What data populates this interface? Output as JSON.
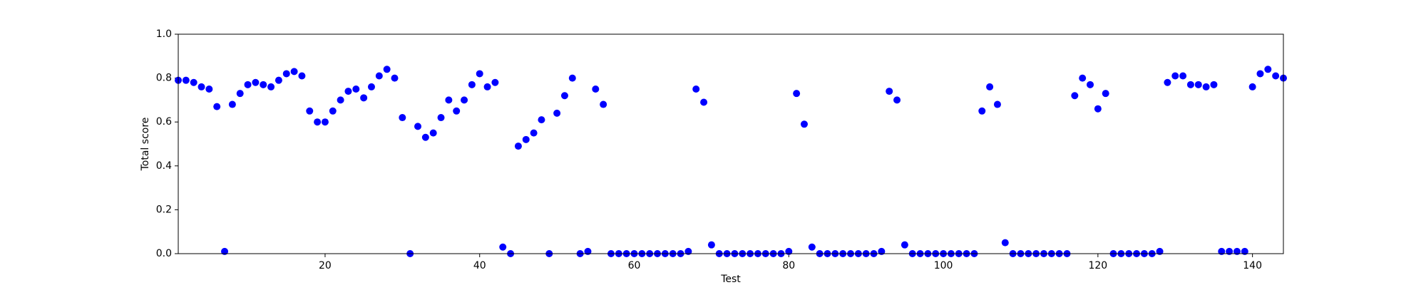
{
  "chart_data": {
    "type": "scatter",
    "xlabel": "Test",
    "ylabel": "Total score",
    "color": "#0000ff",
    "x": [
      1,
      2,
      3,
      4,
      5,
      6,
      7,
      8,
      9,
      10,
      11,
      12,
      13,
      14,
      15,
      16,
      17,
      18,
      19,
      20,
      21,
      22,
      23,
      24,
      25,
      26,
      27,
      28,
      29,
      30,
      31,
      32,
      33,
      34,
      35,
      36,
      37,
      38,
      39,
      40,
      41,
      42,
      43,
      44,
      45,
      46,
      47,
      48,
      49,
      50,
      51,
      52,
      53,
      54,
      55,
      56,
      57,
      58,
      59,
      60,
      61,
      62,
      63,
      64,
      65,
      66,
      67,
      68,
      69,
      70,
      71,
      72,
      73,
      74,
      75,
      76,
      77,
      78,
      79,
      80,
      81,
      82,
      83,
      84,
      85,
      86,
      87,
      88,
      89,
      90,
      91,
      92,
      93,
      94,
      95,
      96,
      97,
      98,
      99,
      100,
      101,
      102,
      103,
      104,
      105,
      106,
      107,
      108,
      109,
      110,
      111,
      112,
      113,
      114,
      115,
      116,
      117,
      118,
      119,
      120,
      121,
      122,
      123,
      124,
      125,
      126,
      127,
      128,
      129,
      130,
      131,
      132,
      133,
      134,
      135,
      136,
      137,
      138,
      139,
      140,
      141,
      142,
      143,
      144
    ],
    "values": [
      0.79,
      0.79,
      0.78,
      0.76,
      0.75,
      0.67,
      0.01,
      0.68,
      0.73,
      0.77,
      0.78,
      0.77,
      0.76,
      0.79,
      0.82,
      0.83,
      0.81,
      0.65,
      0.6,
      0.6,
      0.65,
      0.7,
      0.74,
      0.75,
      0.71,
      0.76,
      0.81,
      0.84,
      0.8,
      0.62,
      0,
      0.58,
      0.53,
      0.55,
      0.62,
      0.7,
      0.65,
      0.7,
      0.77,
      0.82,
      0.76,
      0.78,
      0.03,
      0,
      0.49,
      0.52,
      0.55,
      0.61,
      0,
      0.64,
      0.72,
      0.8,
      0,
      0.01,
      0.75,
      0.68,
      0,
      0,
      0,
      0,
      0,
      0,
      0,
      0,
      0,
      0,
      0.01,
      0.75,
      0.69,
      0.04,
      0,
      0,
      0,
      0,
      0,
      0,
      0,
      0,
      0,
      0.01,
      0.73,
      0.59,
      0.03,
      0,
      0,
      0,
      0,
      0,
      0,
      0,
      0,
      0.01,
      0.74,
      0.7,
      0.04,
      0,
      0,
      0,
      0,
      0,
      0,
      0,
      0,
      0,
      0.65,
      0.76,
      0.68,
      0.05,
      0,
      0,
      0,
      0,
      0,
      0,
      0,
      0,
      0.72,
      0.8,
      0.77,
      0.66,
      0.73,
      0,
      0,
      0,
      0,
      0,
      0,
      0.01,
      0.78,
      0.81,
      0.81,
      0.77,
      0.77,
      0.76,
      0.77,
      0.01,
      0.01,
      0.01,
      0.01,
      0.76,
      0.82,
      0.84,
      0.81,
      0.8
    ],
    "xlim": [
      1,
      144
    ],
    "ylim": [
      0,
      1
    ],
    "xticks": [
      20,
      40,
      60,
      80,
      100,
      120,
      140
    ],
    "yticks": [
      {
        "value": 0,
        "label": "0.0"
      },
      0.2,
      0.4,
      0.6,
      0.8,
      {
        "value": 1,
        "label": "1.0"
      }
    ]
  }
}
